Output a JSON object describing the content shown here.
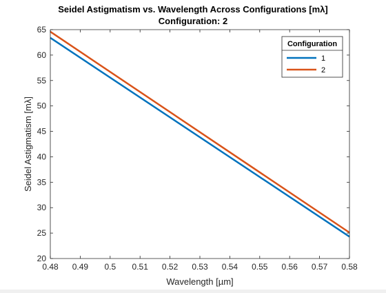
{
  "chart_data": {
    "type": "line",
    "title": "Seidel Astigmatism vs. Wavelength Across Configurations [mλ]",
    "subtitle": "Configuration: 2",
    "xlabel": "Wavelength [µm]",
    "ylabel": "Seidel Astigmatism [mλ]",
    "xlim": [
      0.48,
      0.58
    ],
    "ylim": [
      20,
      65
    ],
    "xticks": [
      "0.48",
      "0.49",
      "0.5",
      "0.51",
      "0.52",
      "0.53",
      "0.54",
      "0.55",
      "0.56",
      "0.57",
      "0.58"
    ],
    "yticks": [
      "20",
      "25",
      "30",
      "35",
      "40",
      "45",
      "50",
      "55",
      "60",
      "65"
    ],
    "grid": false,
    "legend": {
      "title": "Configuration",
      "placement": "top-right"
    },
    "series": [
      {
        "name": "1",
        "color": "#0072BD",
        "x": [
          0.48,
          0.58
        ],
        "y": [
          63.4,
          24.3
        ]
      },
      {
        "name": "2",
        "color": "#D95319",
        "x": [
          0.48,
          0.58
        ],
        "y": [
          64.6,
          25.1
        ]
      }
    ]
  }
}
